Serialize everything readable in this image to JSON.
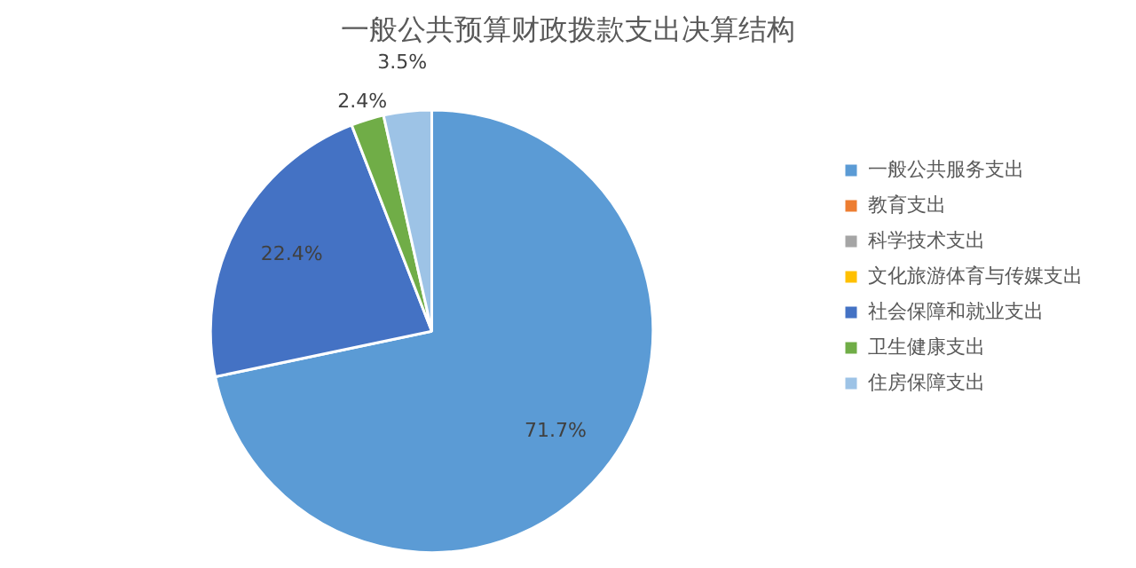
{
  "chart_data": {
    "type": "pie",
    "title": "一般公共预算财政拨款支出决算结构",
    "categories": [
      "一般公共服务支出",
      "教育支出",
      "科学技术支出",
      "文化旅游体育与传媒支出",
      "社会保障和就业支出",
      "卫生健康支出",
      "住房保障支出"
    ],
    "values": [
      71.7,
      0,
      0,
      0,
      22.4,
      2.4,
      3.5
    ],
    "colors": [
      "#5b9bd5",
      "#ed7d31",
      "#a5a5a5",
      "#ffc000",
      "#4472c4",
      "#70ad47",
      "#9dc3e6"
    ],
    "value_labels": [
      "71.7%",
      null,
      null,
      null,
      "22.4%",
      "2.4%",
      "3.5%"
    ],
    "legend": "right"
  }
}
